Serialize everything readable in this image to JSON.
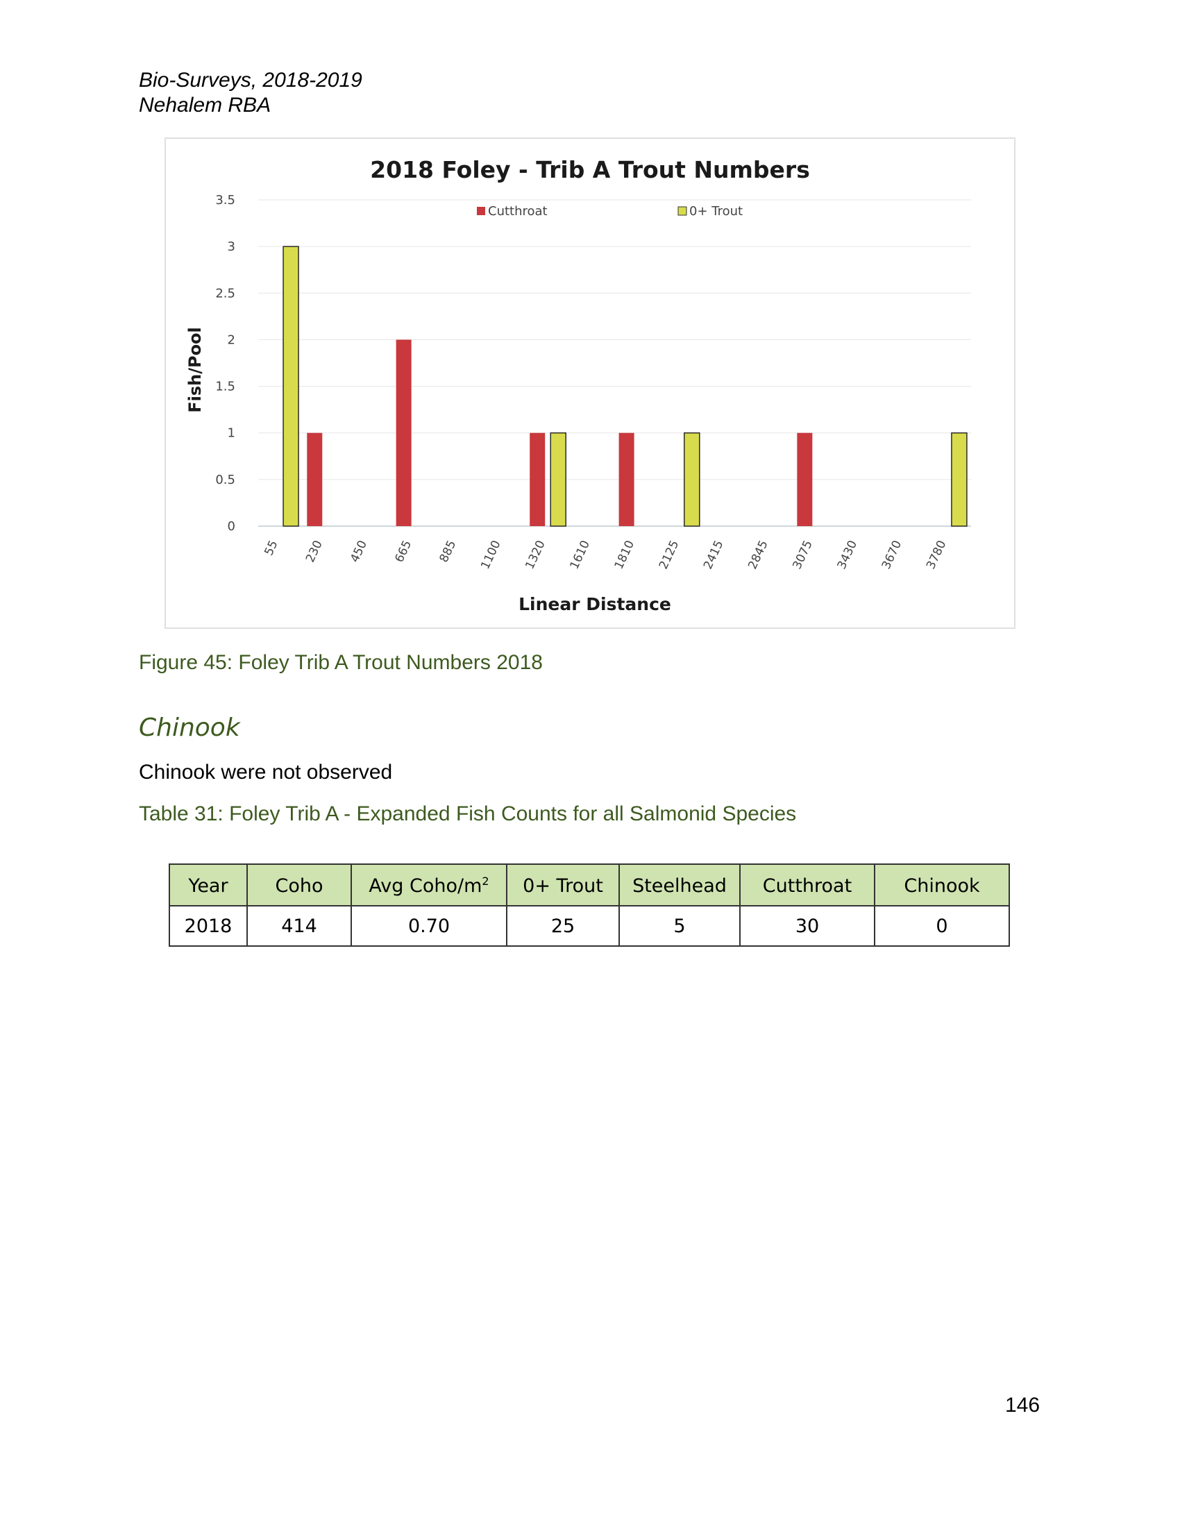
{
  "header": {
    "line1": "Bio-Surveys, 2018-2019",
    "line2": "Nehalem RBA"
  },
  "chart_data": {
    "type": "bar",
    "title": "2018 Foley - Trib A Trout Numbers",
    "xlabel": "Linear Distance",
    "ylabel": "Fish/Pool",
    "ylim": [
      0,
      3.5
    ],
    "yticks": [
      "0",
      "0.5",
      "1",
      "1.5",
      "2",
      "2.5",
      "3",
      "3.5"
    ],
    "grid": true,
    "legend_position": "top",
    "categories": [
      "55",
      "230",
      "450",
      "665",
      "885",
      "1100",
      "1320",
      "1610",
      "1810",
      "2125",
      "2415",
      "2845",
      "3075",
      "3430",
      "3670",
      "3780"
    ],
    "series": [
      {
        "name": "Cutthroat",
        "color": "#c8383c",
        "values": [
          0,
          1,
          0,
          2,
          0,
          0,
          1,
          0,
          1,
          0,
          0,
          0,
          1,
          0,
          0,
          0
        ]
      },
      {
        "name": "0+ Trout",
        "color": "#d8dc4c",
        "values": [
          3,
          0,
          0,
          0,
          0,
          0,
          1,
          0,
          0,
          1,
          0,
          0,
          0,
          0,
          0,
          1
        ]
      }
    ]
  },
  "figure_caption": "Figure 45: Foley Trib A Trout Numbers 2018",
  "section": {
    "heading": "Chinook",
    "text": "Chinook were not observed"
  },
  "table_caption": "Table 31: Foley Trib A - Expanded Fish Counts for all Salmonid Species",
  "table": {
    "headers": [
      "Year",
      "Coho",
      "Avg Coho/m",
      "0+ Trout",
      "Steelhead",
      "Cutthroat",
      "Chinook"
    ],
    "avg_superscript": "2",
    "rows": [
      [
        "2018",
        "414",
        "0.70",
        "25",
        "5",
        "30",
        "0"
      ]
    ]
  },
  "page_number": "146"
}
